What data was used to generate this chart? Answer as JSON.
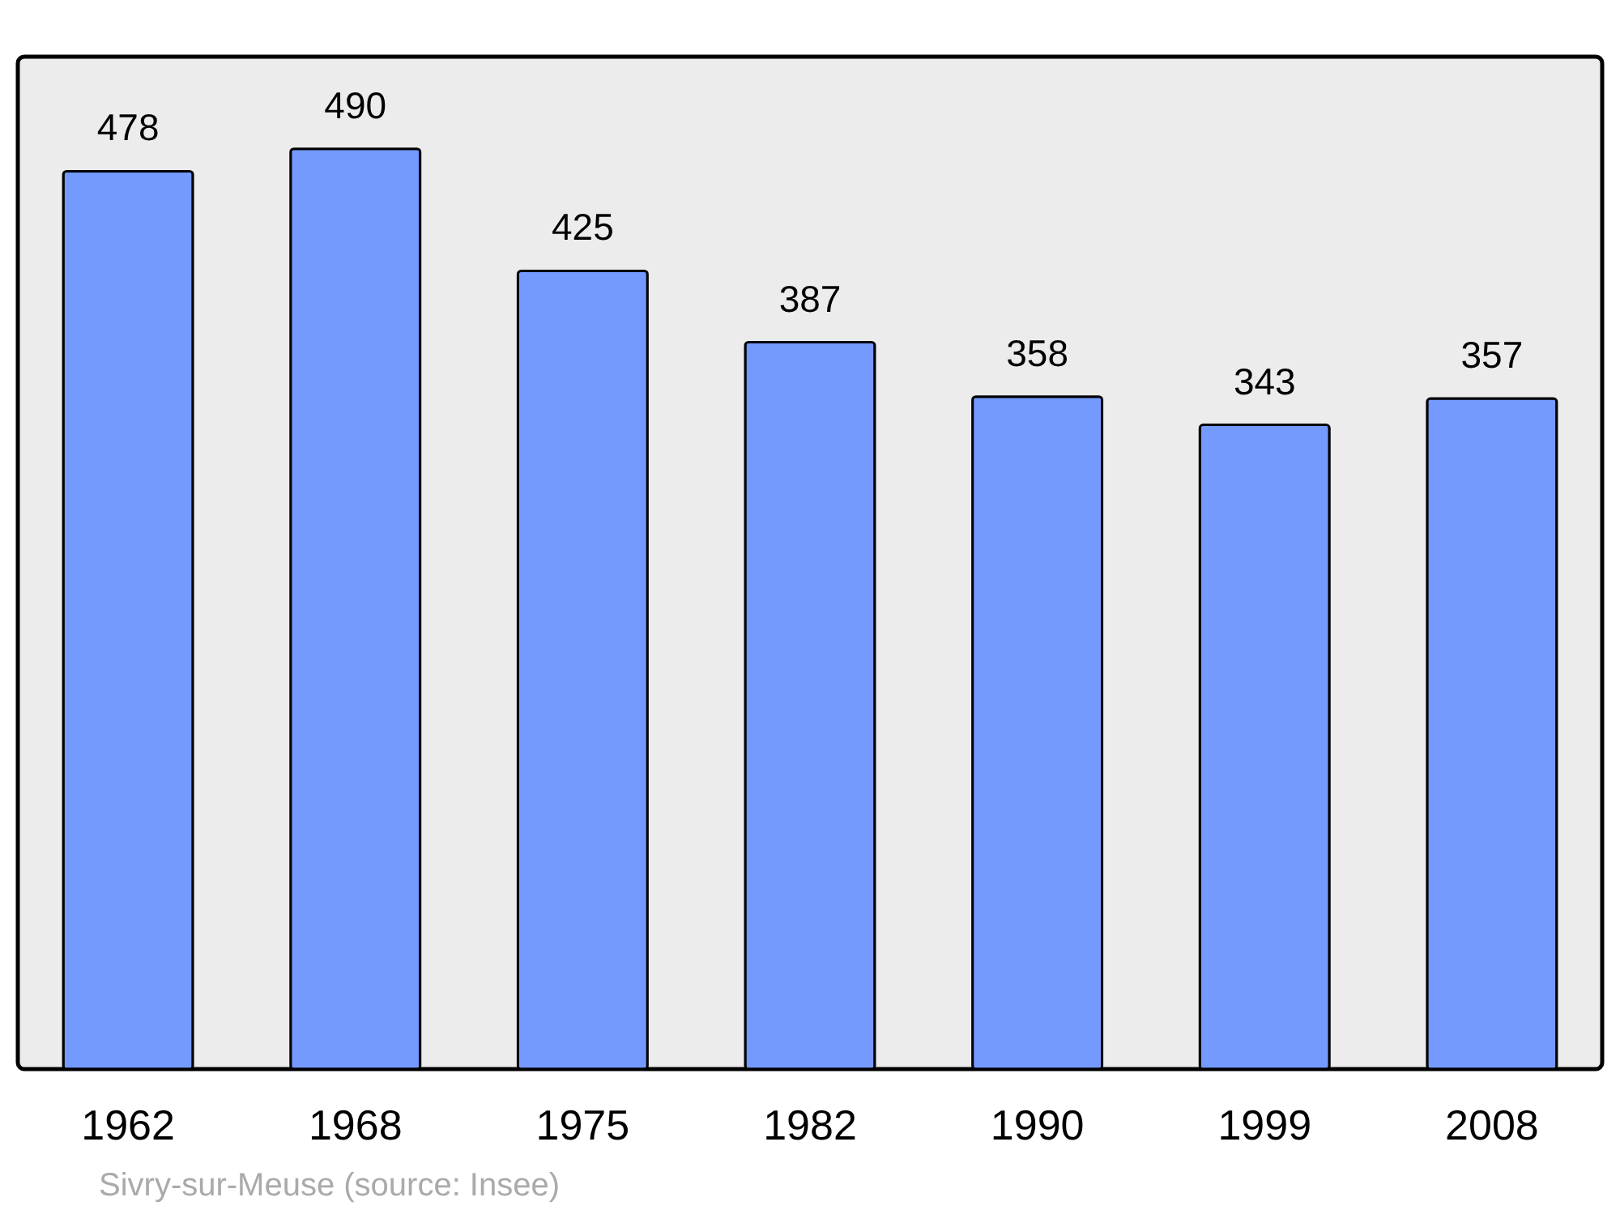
{
  "chart_data": {
    "type": "bar",
    "categories": [
      "1962",
      "1968",
      "1975",
      "1982",
      "1990",
      "1999",
      "2008"
    ],
    "values": [
      478,
      490,
      425,
      387,
      358,
      343,
      357
    ],
    "color": "#7499ff",
    "data_labels": true,
    "annotations": [
      "Sivry-sur-Meuse    (source: Insee)"
    ]
  }
}
